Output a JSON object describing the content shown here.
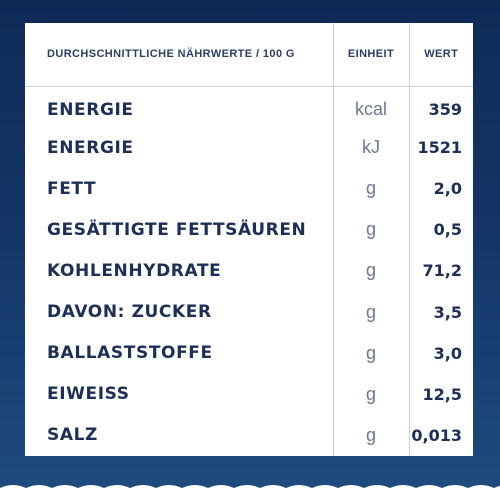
{
  "colors": {
    "background": "#143566",
    "panel": "#ffffff",
    "text": "#1c2f57",
    "unit_text": "#6c7890",
    "divider": "#c9cfdb",
    "scallop": "#ffffff"
  },
  "table": {
    "headers": {
      "nutrient": "DURCHSCHNITTLICHE NÄHRWERTE / 100 G",
      "unit": "EINHEIT",
      "value": "WERT"
    },
    "rows": [
      {
        "name": "ENERGIE",
        "unit": "kcal",
        "value": "359"
      },
      {
        "name": "ENERGIE",
        "unit": "kJ",
        "value": "1521"
      },
      {
        "name": "FETT",
        "unit": "g",
        "value": "2,0"
      },
      {
        "name": "GESÄTTIGTE FETTSÄUREN",
        "unit": "g",
        "value": "0,5"
      },
      {
        "name": "KOHLENHYDRATE",
        "unit": "g",
        "value": "71,2"
      },
      {
        "name": "DAVON: ZUCKER",
        "unit": "g",
        "value": "3,5"
      },
      {
        "name": "BALLASTSTOFFE",
        "unit": "g",
        "value": "3,0"
      },
      {
        "name": "EIWEISS",
        "unit": "g",
        "value": "12,5"
      },
      {
        "name": "SALZ",
        "unit": "g",
        "value": "0,013"
      }
    ]
  }
}
